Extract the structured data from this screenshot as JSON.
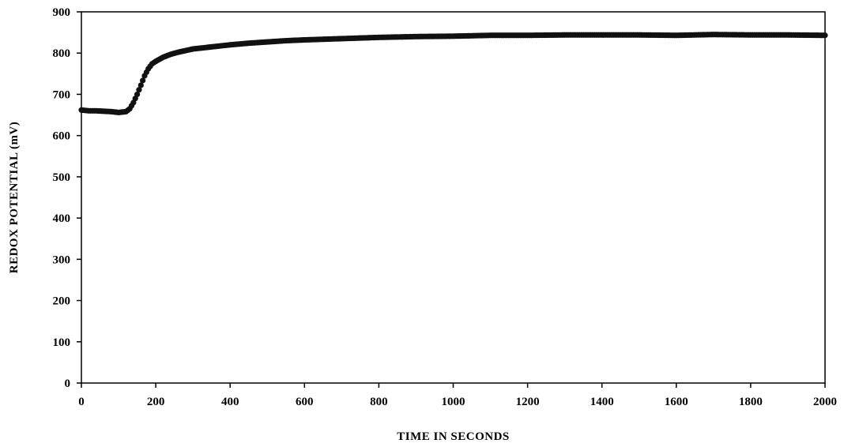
{
  "chart_data": {
    "type": "scatter",
    "title": "",
    "xlabel": "TIME IN SECONDS",
    "ylabel": "REDOX POTENTIAL (mV)",
    "xlim": [
      0,
      2000
    ],
    "ylim": [
      0,
      900
    ],
    "xticks": [
      0,
      200,
      400,
      600,
      800,
      1000,
      1200,
      1400,
      1600,
      1800,
      2000
    ],
    "yticks": [
      0,
      100,
      200,
      300,
      400,
      500,
      600,
      700,
      800,
      900
    ],
    "grid": false,
    "legend": "none",
    "marker_color": "#111111",
    "series": [
      {
        "x": [
          0,
          20,
          40,
          60,
          80,
          100,
          120,
          130,
          140,
          150,
          160,
          170,
          180,
          190,
          200,
          220,
          240,
          260,
          280,
          300,
          350,
          400,
          450,
          500,
          550,
          600,
          700,
          800,
          900,
          1000,
          1100,
          1200,
          1300,
          1400,
          1500,
          1600,
          1700,
          1800,
          1900,
          2000
        ],
        "y": [
          662,
          660,
          660,
          659,
          658,
          656,
          658,
          665,
          680,
          700,
          722,
          745,
          762,
          774,
          780,
          790,
          797,
          802,
          806,
          810,
          815,
          820,
          824,
          827,
          830,
          832,
          835,
          838,
          840,
          841,
          843,
          843,
          844,
          844,
          844,
          843,
          845,
          844,
          844,
          843
        ]
      }
    ]
  }
}
